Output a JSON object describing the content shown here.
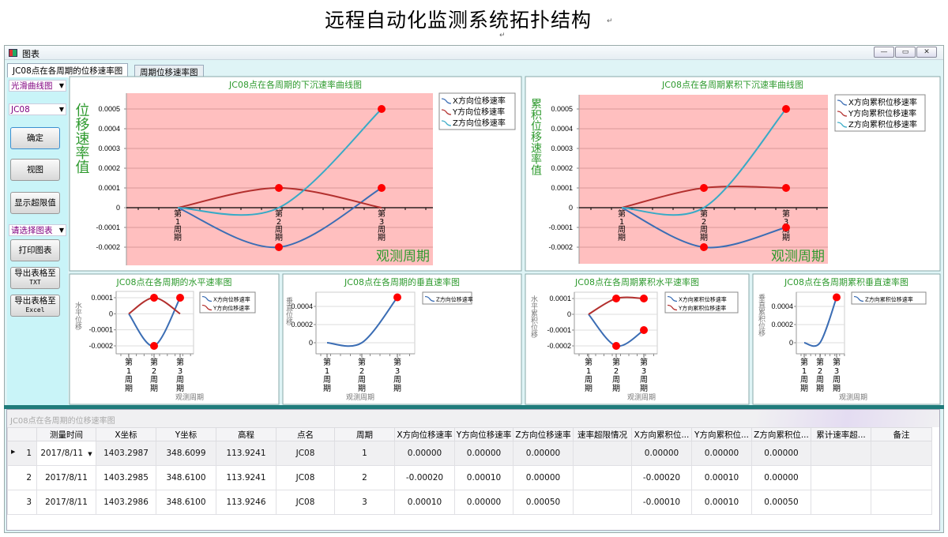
{
  "heading": "远程自动化监测系统拓扑结构",
  "window": {
    "title": "图表"
  },
  "tabs": [
    {
      "label": "JC08点在各周期的位移速率图"
    },
    {
      "label": "周期位移速率图"
    }
  ],
  "sidebar": {
    "curve_type": "光滑曲线图",
    "point": "JC08",
    "confirm": "确定",
    "view": "视图",
    "show_limit": "显示超限值",
    "chart_select": "请选择图表",
    "print": "打印图表",
    "export_txt": {
      "line1": "导出表格至",
      "line2": "TXT"
    },
    "export_excel": {
      "line1": "导出表格至",
      "line2": "Excel"
    }
  },
  "colors": {
    "x": "#3b6db4",
    "y": "#b3302e",
    "z": "#38aac6",
    "marker": "#ff0000",
    "title": "#2e9a2e",
    "plot_bg": "#ffbfbf"
  },
  "chart_data": [
    {
      "type": "line",
      "title": "JC08点在各周期的下沉速率曲线图",
      "ylabel": "位移速率值",
      "xlabel": "观测周期",
      "categories": [
        "第1周期",
        "第2周期",
        "第3周期"
      ],
      "yticks": [
        "-0.0002",
        "-0.0001",
        "0",
        "0.0001",
        "0.0002",
        "0.0003",
        "0.0004",
        "0.0005"
      ],
      "legend": "right",
      "series": [
        {
          "name": "X方向位移速率",
          "key": "x",
          "values": [
            0,
            -0.0002,
            0.0001
          ]
        },
        {
          "name": "Y方向位移速率",
          "key": "y",
          "values": [
            0,
            0.0001,
            0
          ]
        },
        {
          "name": "Z方向位移速率",
          "key": "z",
          "values": [
            0,
            0,
            0.0005
          ]
        }
      ]
    },
    {
      "type": "line",
      "title": "JC08点在各周期累积下沉速率曲线图",
      "ylabel": "累积位移速率值",
      "xlabel": "观测周期",
      "categories": [
        "第1周期",
        "第2周期",
        "第3周期"
      ],
      "yticks": [
        "-0.0002",
        "-0.0001",
        "0",
        "0.0001",
        "0.0002",
        "0.0003",
        "0.0004",
        "0.0005"
      ],
      "legend": "right",
      "series": [
        {
          "name": "X方向累积位移速率",
          "key": "x",
          "values": [
            0,
            -0.0002,
            -0.0001
          ]
        },
        {
          "name": "Y方向累积位移速率",
          "key": "y",
          "values": [
            0,
            0.0001,
            0.0001
          ]
        },
        {
          "name": "Z方向累积位移速率",
          "key": "z",
          "values": [
            0,
            0,
            0.0005
          ]
        }
      ]
    },
    {
      "type": "line",
      "title": "JC08点在各周期的水平速率图",
      "ylabel": "水平位移",
      "xlabel": "观测周期",
      "categories": [
        "第1周期",
        "第2周期",
        "第3周期"
      ],
      "yticks": [
        "-0.0002",
        "-0.0001",
        "0",
        "0.0001"
      ],
      "legend": "right",
      "series": [
        {
          "name": "X方向位移速率",
          "key": "x",
          "values": [
            0,
            -0.0002,
            0.0001
          ]
        },
        {
          "name": "Y方向位移速率",
          "key": "y",
          "values": [
            0,
            0.0001,
            0
          ]
        }
      ]
    },
    {
      "type": "line",
      "title": "JC08点在各周期的垂直速率图",
      "ylabel": "垂直位移",
      "xlabel": "观测周期",
      "categories": [
        "第1周期",
        "第2周期",
        "第3周期"
      ],
      "yticks": [
        "0",
        "0.0002",
        "0.0004"
      ],
      "legend": "right",
      "series": [
        {
          "name": "Z方向位移速率",
          "key": "x",
          "values": [
            0,
            0,
            0.0005
          ]
        }
      ]
    },
    {
      "type": "line",
      "title": "JC08点在各周期累积水平速率图",
      "ylabel": "水平累积位移",
      "xlabel": "观测周期",
      "categories": [
        "第1周期",
        "第2周期",
        "第3周期"
      ],
      "yticks": [
        "-0.0002",
        "-0.0001",
        "0",
        "0.0001"
      ],
      "legend": "right",
      "series": [
        {
          "name": "X方向累积位移速率",
          "key": "x",
          "values": [
            0,
            -0.0002,
            -0.0001
          ]
        },
        {
          "name": "Y方向累积位移速率",
          "key": "y",
          "values": [
            0,
            0.0001,
            0.0001
          ]
        }
      ]
    },
    {
      "type": "line",
      "title": "JC08点在各周期累积垂直速率图",
      "ylabel": "垂直累积位移",
      "xlabel": "观测周期",
      "categories": [
        "第1周期",
        "第2周期",
        "第3周期"
      ],
      "yticks": [
        "0",
        "0.0002",
        "0.0004"
      ],
      "legend": "right",
      "series": [
        {
          "name": "Z方向累积位移速率",
          "key": "x",
          "values": [
            0,
            0,
            0.0005
          ]
        }
      ]
    }
  ],
  "grid": {
    "caption": "JC08点在各周期的位移速率图",
    "columns": [
      "测量时间",
      "X坐标",
      "Y坐标",
      "高程",
      "点名",
      "周期",
      "X方向位移速率",
      "Y方向位移速率",
      "Z方向位移速率",
      "速率超限情况",
      "X方向累积位...",
      "Y方向累积位...",
      "Z方向累积位...",
      "累计速率超...",
      "备注"
    ],
    "rows": [
      {
        "n": "1",
        "cells": [
          "2017/8/11",
          "1403.2987",
          "348.6099",
          "113.9241",
          "JC08",
          "1",
          "0.00000",
          "0.00000",
          "0.00000",
          "",
          "0.00000",
          "0.00000",
          "0.00000",
          "",
          ""
        ]
      },
      {
        "n": "2",
        "cells": [
          "2017/8/11",
          "1403.2985",
          "348.6100",
          "113.9241",
          "JC08",
          "2",
          "-0.00020",
          "0.00010",
          "0.00000",
          "",
          "-0.00020",
          "0.00010",
          "0.00000",
          "",
          ""
        ]
      },
      {
        "n": "3",
        "cells": [
          "2017/8/11",
          "1403.2986",
          "348.6100",
          "113.9246",
          "JC08",
          "3",
          "0.00010",
          "0.00000",
          "0.00050",
          "",
          "-0.00010",
          "0.00010",
          "0.00050",
          "",
          ""
        ]
      }
    ]
  }
}
